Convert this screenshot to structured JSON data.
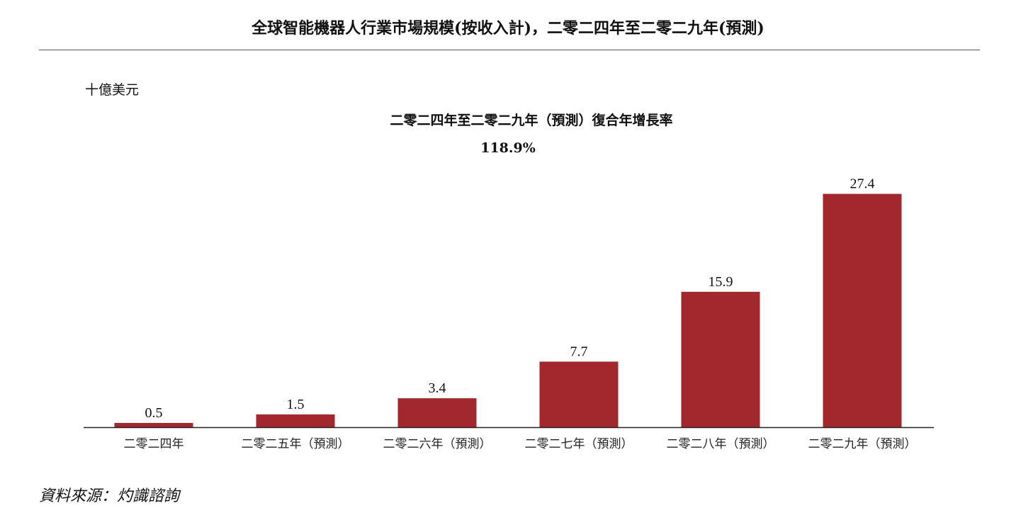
{
  "title": "全球智能機器人行業市場規模(按收入計)，二零二四年至二零二九年(預測)",
  "unit": "十億美元",
  "cagr": {
    "label": "二零二四年至二零二九年（預測）復合年增長率",
    "value": "118.9%"
  },
  "source": "資料來源：灼識諮詢",
  "chart_data": {
    "type": "bar",
    "categories": [
      "二零二四年",
      "二零二五年（預測）",
      "二零二六年（預測）",
      "二零二七年（預測）",
      "二零二八年（預測）",
      "二零二九年（預測）"
    ],
    "values": [
      0.5,
      1.5,
      3.4,
      7.7,
      15.9,
      27.4
    ],
    "data_labels": [
      "0.5",
      "1.5",
      "3.4",
      "7.7",
      "15.9",
      "27.4"
    ],
    "ylabel": "十億美元",
    "grid": false,
    "bar_color": "#a3282e"
  }
}
